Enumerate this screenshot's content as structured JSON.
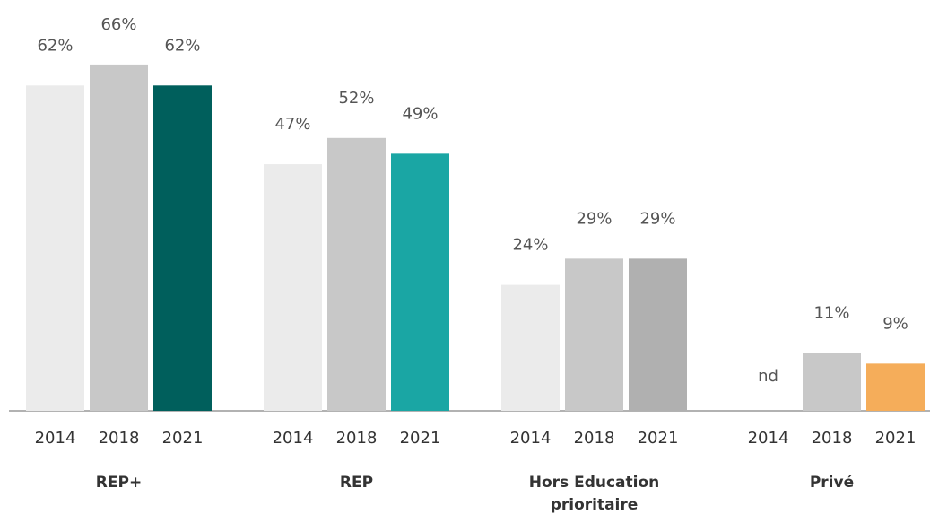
{
  "chart_data": {
    "type": "bar",
    "categories": [
      "REP+",
      "REP",
      "Hors Education prioritaire",
      "Privé"
    ],
    "series": [
      {
        "name": "2014",
        "color": "#ebebeb",
        "values": [
          62,
          47,
          24,
          null
        ],
        "value_labels": [
          "62%",
          "47%",
          "24%",
          "nd"
        ]
      },
      {
        "name": "2018",
        "color": "#c8c8c8",
        "values": [
          66,
          52,
          29,
          11
        ],
        "value_labels": [
          "66%",
          "52%",
          "29%",
          "11%"
        ]
      },
      {
        "name": "2021",
        "colors": [
          "#005f5c",
          "#1aa6a4",
          "#b0b0b0",
          "#f5ad5a"
        ],
        "values": [
          62,
          49,
          29,
          9
        ],
        "value_labels": [
          "62%",
          "49%",
          "29%",
          "9%"
        ]
      }
    ],
    "ylim": [
      0,
      70
    ]
  }
}
